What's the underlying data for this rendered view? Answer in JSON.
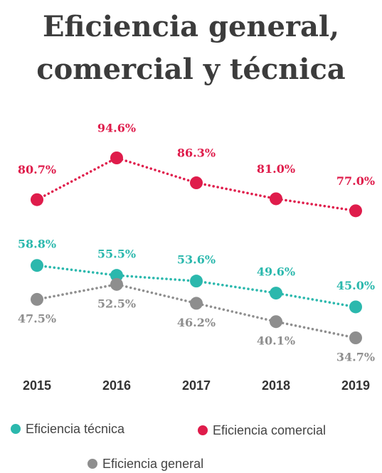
{
  "chart_data": {
    "type": "line",
    "title": "Eficiencia general, comercial y técnica",
    "categories": [
      "2015",
      "2016",
      "2017",
      "2018",
      "2019"
    ],
    "series": [
      {
        "name": "Eficiencia técnica",
        "color": "#2bb8ad",
        "values": [
          58.8,
          55.5,
          53.6,
          49.6,
          45.0
        ],
        "value_labels": [
          "58.8%",
          "55.5%",
          "53.6%",
          "49.6%",
          "45.0%"
        ]
      },
      {
        "name": "Eficiencia comercial",
        "color": "#df1c4b",
        "values": [
          80.7,
          94.6,
          86.3,
          81.0,
          77.0
        ],
        "value_labels": [
          "80.7%",
          "94.6%",
          "86.3%",
          "81.0%",
          "77.0%"
        ]
      },
      {
        "name": "Eficiencia general",
        "color": "#8e8e8e",
        "values": [
          47.5,
          52.5,
          46.2,
          40.1,
          34.7
        ],
        "value_labels": [
          "47.5%",
          "52.5%",
          "46.2%",
          "40.1%",
          "34.7%"
        ]
      }
    ]
  }
}
